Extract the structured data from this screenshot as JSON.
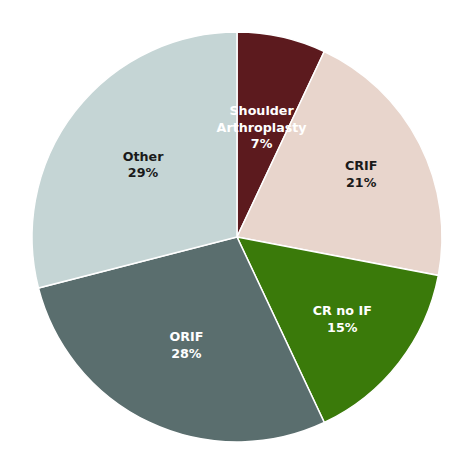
{
  "chart_data": {
    "type": "pie",
    "categories": [
      "Shoulder\nArthroplasty",
      "CRIF",
      "CR no IF",
      "ORIF",
      "Other"
    ],
    "values": [
      7,
      21,
      15,
      28,
      29
    ],
    "value_labels": [
      "7%",
      "21%",
      "15%",
      "28%",
      "29%"
    ],
    "colors": [
      "#5c1a1e",
      "#e8d5cc",
      "#3a7a0a",
      "#5a6e6e",
      "#c5d5d5"
    ],
    "data_labels": true
  }
}
